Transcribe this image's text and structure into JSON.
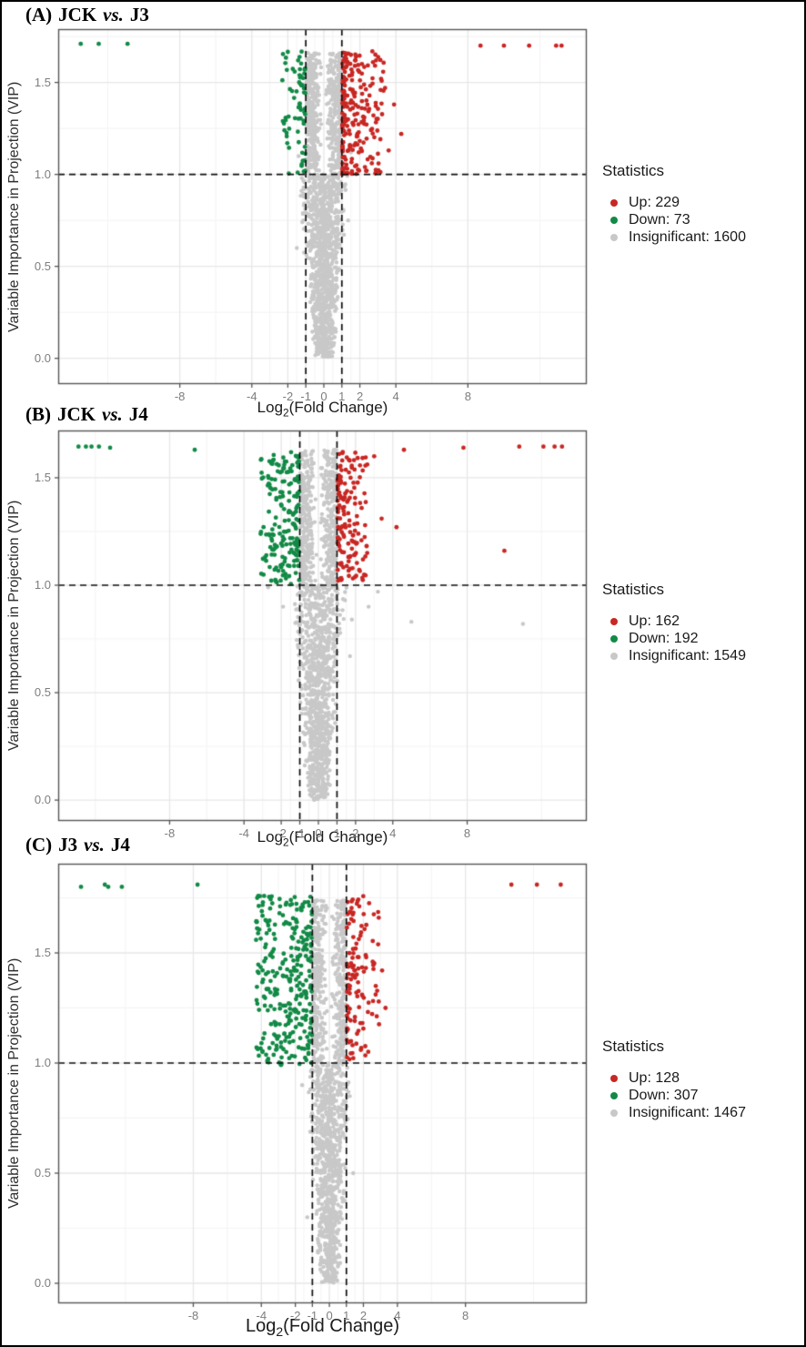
{
  "figure": {
    "colors": {
      "up": "#C82723",
      "down": "#128A46",
      "insig": "#C8C8C8",
      "grid_major": "#E7E7E7",
      "grid_minor": "#F4F4F4",
      "frame": "#555555",
      "dashed": "#111111",
      "tick_text": "#7d7d7d"
    }
  },
  "chart_data": [
    {
      "type": "scatter",
      "panel": "A",
      "title": {
        "prefix": "(A)",
        "group_a": "JCK",
        "vs": "vs.",
        "group_b": "J3"
      },
      "xlabel": {
        "pre": "Log",
        "sub": "2",
        "post": "(Fold Change)"
      },
      "ylabel": "Variable Importance in Projection (VIP)",
      "xlim": [
        -14.75,
        14.6
      ],
      "ylim": [
        -0.14,
        1.79
      ],
      "xticks": [
        -8,
        -4,
        -2,
        -1,
        0,
        1,
        2,
        4,
        8
      ],
      "xtick_labels": [
        "-8",
        "-4",
        "-2",
        "-1",
        "0",
        "1",
        "2",
        "4",
        "8"
      ],
      "xminor": [
        -12,
        -6,
        -3,
        -1.5,
        -0.5,
        0.5,
        1.5,
        3,
        6,
        12
      ],
      "yticks": [
        0,
        0.5,
        1,
        1.5
      ],
      "ytick_labels": [
        "0.0",
        "0.5",
        "1.0",
        "1.5"
      ],
      "yminor": [
        0.25,
        0.75,
        1.25,
        1.75
      ],
      "vlines": [
        -1,
        1
      ],
      "hline": 1,
      "legend": {
        "title": "Statistics",
        "items": [
          {
            "key": "up",
            "label": "Up: 229"
          },
          {
            "key": "down",
            "label": "Down: 73"
          },
          {
            "key": "insig",
            "label": "Insignificant: 1600"
          }
        ]
      },
      "series": {
        "up": {
          "name": "Up",
          "count": 229,
          "cluster": {
            "x_min": 1.03,
            "x_span": 2.3,
            "x_pow": 2.0,
            "vip_min": 1.0,
            "vip_max": 1.67
          },
          "extra": [
            [
              2.9,
              1.62
            ],
            [
              3.4,
              1.47
            ],
            [
              3.9,
              1.38
            ],
            [
              4.3,
              1.22
            ],
            [
              3.6,
              1.13
            ]
          ],
          "outliers": [
            [
              8.7,
              1.7
            ],
            [
              10.0,
              1.7
            ],
            [
              11.4,
              1.7
            ],
            [
              12.9,
              1.7
            ],
            [
              13.2,
              1.7
            ]
          ]
        },
        "down": {
          "name": "Down",
          "count": 73,
          "cluster": {
            "x_min": -1.03,
            "x_span": -1.3,
            "x_pow": 1.6,
            "vip_min": 1.0,
            "vip_max": 1.67
          },
          "extra": [],
          "outliers": [
            [
              -13.5,
              1.71
            ],
            [
              -12.5,
              1.71
            ],
            [
              -10.9,
              1.71
            ]
          ]
        },
        "insig": {
          "name": "Insignificant",
          "count": 1600,
          "above": {
            "frac": 0.38,
            "halfwidth": 0.97,
            "vip_max": 1.66
          },
          "funnel": {
            "base": 0.62,
            "slope": 0.9
          },
          "outliers": [
            [
              1.5,
              1.12
            ],
            [
              -1.4,
              1.1
            ],
            [
              1.35,
              0.75
            ],
            [
              -1.5,
              0.6
            ]
          ]
        }
      }
    },
    {
      "type": "scatter",
      "panel": "B",
      "title": {
        "prefix": "(B)",
        "group_a": "JCK",
        "vs": "vs.",
        "group_b": "J4"
      },
      "xlabel": {
        "pre": "Log",
        "sub": "2",
        "post": "(Fold Change)"
      },
      "ylabel": "Variable Importance in Projection (VIP)",
      "xlim": [
        -13.99,
        14.43
      ],
      "ylim": [
        -0.097,
        1.72
      ],
      "xticks": [
        -8,
        -4,
        -2,
        -1,
        0,
        1,
        2,
        4,
        8
      ],
      "xtick_labels": [
        "-8",
        "-4",
        "-2",
        "-1",
        "0",
        "1",
        "2",
        "4",
        "8"
      ],
      "xminor": [
        -12,
        -6,
        -3,
        -1.5,
        -0.5,
        0.5,
        1.5,
        3,
        6,
        12
      ],
      "yticks": [
        0,
        0.5,
        1,
        1.5
      ],
      "ytick_labels": [
        "0.0",
        "0.5",
        "1.0",
        "1.5"
      ],
      "yminor": [
        0.25,
        0.75,
        1.25,
        1.75
      ],
      "vlines": [
        -1,
        1
      ],
      "hline": 1,
      "legend": {
        "title": "Statistics",
        "items": [
          {
            "key": "up",
            "label": "Up: 162"
          },
          {
            "key": "down",
            "label": "Down: 192"
          },
          {
            "key": "insig",
            "label": "Insignificant: 1549"
          }
        ]
      },
      "series": {
        "up": {
          "name": "Up",
          "count": 162,
          "cluster": {
            "x_min": 1.03,
            "x_span": 1.6,
            "x_pow": 1.8,
            "vip_min": 1.0,
            "vip_max": 1.62
          },
          "extra": [
            [
              3.0,
              1.6
            ],
            [
              3.4,
              1.31
            ],
            [
              4.2,
              1.27
            ],
            [
              10.0,
              1.16
            ],
            [
              4.6,
              1.63
            ]
          ],
          "outliers": [
            [
              7.8,
              1.64
            ],
            [
              10.8,
              1.645
            ],
            [
              12.1,
              1.645
            ],
            [
              12.7,
              1.645
            ],
            [
              13.1,
              1.645
            ]
          ]
        },
        "down": {
          "name": "Down",
          "count": 192,
          "cluster": {
            "x_min": -1.03,
            "x_span": -2.1,
            "x_pow": 1.5,
            "vip_min": 1.0,
            "vip_max": 1.62
          },
          "extra": [],
          "outliers": [
            [
              -12.9,
              1.645
            ],
            [
              -12.5,
              1.645
            ],
            [
              -12.2,
              1.645
            ],
            [
              -11.8,
              1.645
            ],
            [
              -11.2,
              1.64
            ],
            [
              -6.65,
              1.63
            ]
          ]
        },
        "insig": {
          "name": "Insignificant",
          "count": 1549,
          "above": {
            "frac": 0.37,
            "halfwidth": 0.97,
            "vip_max": 1.63
          },
          "funnel": {
            "base": 0.6,
            "slope": 1.0
          },
          "outliers": [
            [
              3.2,
              0.97
            ],
            [
              2.7,
              0.9
            ],
            [
              1.8,
              0.84
            ],
            [
              5.0,
              0.83
            ],
            [
              1.7,
              0.67
            ],
            [
              -2.7,
              0.99
            ],
            [
              -1.9,
              0.9
            ],
            [
              11.0,
              0.82
            ]
          ]
        }
      }
    },
    {
      "type": "scatter",
      "panel": "C",
      "title": {
        "prefix": "(C)",
        "group_a": "J3",
        "vs": "vs.",
        "group_b": "J4"
      },
      "xlabel": {
        "pre": "Log",
        "sub": "2",
        "post": "(Fold Change)"
      },
      "ylabel": "Variable Importance in Projection (VIP)",
      "xlim": [
        -15.94,
        15.13
      ],
      "ylim": [
        -0.091,
        1.905
      ],
      "xticks": [
        -8,
        -4,
        -2,
        -1,
        0,
        1,
        2,
        4,
        8
      ],
      "xtick_labels": [
        "-8",
        "-4",
        "-2",
        "-1",
        "0",
        "1",
        "2",
        "4",
        "8"
      ],
      "xminor": [
        -12,
        -6,
        -3,
        -1.5,
        -0.5,
        0.5,
        1.5,
        3,
        6,
        12
      ],
      "yticks": [
        0,
        0.5,
        1,
        1.5
      ],
      "ytick_labels": [
        "0.0",
        "0.5",
        "1.0",
        "1.5"
      ],
      "yminor": [
        0.25,
        0.75,
        1.25,
        1.75
      ],
      "vlines": [
        -1,
        1
      ],
      "hline": 1,
      "legend": {
        "title": "Statistics",
        "items": [
          {
            "key": "up",
            "label": "Up: 128"
          },
          {
            "key": "down",
            "label": "Down: 307"
          },
          {
            "key": "insig",
            "label": "Insignificant: 1467"
          }
        ]
      },
      "series": {
        "up": {
          "name": "Up",
          "count": 128,
          "cluster": {
            "x_min": 1.03,
            "x_span": 1.9,
            "x_pow": 1.7,
            "vip_min": 1.0,
            "vip_max": 1.76
          },
          "extra": [
            [
              3.1,
              1.42
            ],
            [
              3.3,
              1.25
            ],
            [
              2.9,
              1.66
            ]
          ],
          "outliers": [
            [
              10.7,
              1.81
            ],
            [
              12.2,
              1.81
            ],
            [
              13.6,
              1.81
            ]
          ]
        },
        "down": {
          "name": "Down",
          "count": 307,
          "cluster": {
            "x_min": -1.03,
            "x_span": -3.3,
            "x_pow": 1.3,
            "vip_min": 0.99,
            "vip_max": 1.76
          },
          "extra": [],
          "outliers": [
            [
              -14.6,
              1.8
            ],
            [
              -13.2,
              1.81
            ],
            [
              -13.0,
              1.8
            ],
            [
              -12.2,
              1.8
            ],
            [
              -7.75,
              1.81
            ]
          ]
        },
        "insig": {
          "name": "Insignificant",
          "count": 1467,
          "above": {
            "frac": 0.4,
            "halfwidth": 0.97,
            "vip_max": 1.74
          },
          "funnel": {
            "base": 0.62,
            "slope": 0.85
          },
          "outliers": [
            [
              -1.6,
              0.9
            ],
            [
              1.4,
              0.5
            ],
            [
              -1.3,
              0.3
            ]
          ]
        }
      }
    }
  ]
}
